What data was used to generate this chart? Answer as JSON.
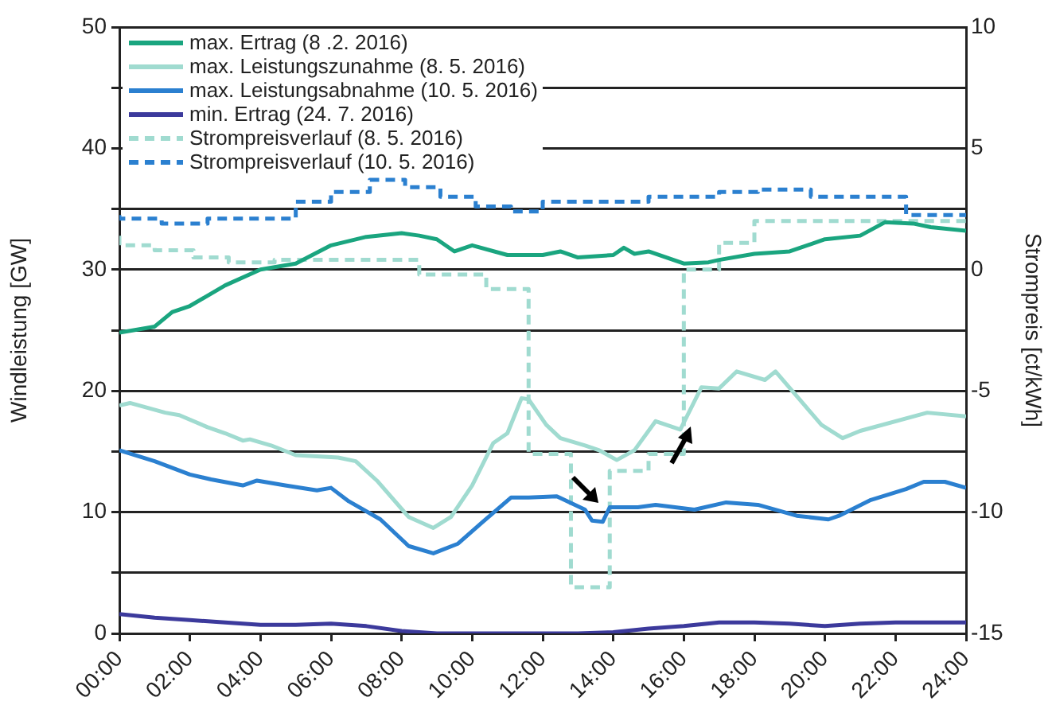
{
  "chart_data": {
    "type": "line",
    "ylabel": "Windleistung [GW]",
    "y2label": "Strompreis [ct/kWh]",
    "xlim": [
      0,
      24
    ],
    "xticks": [
      {
        "value": 0,
        "label": "00:00"
      },
      {
        "value": 2,
        "label": "02:00"
      },
      {
        "value": 4,
        "label": "04:00"
      },
      {
        "value": 6,
        "label": "06:00"
      },
      {
        "value": 8,
        "label": "08:00"
      },
      {
        "value": 10,
        "label": "10:00"
      },
      {
        "value": 12,
        "label": "12:00"
      },
      {
        "value": 14,
        "label": "14:00"
      },
      {
        "value": 16,
        "label": "16:00"
      },
      {
        "value": 18,
        "label": "18:00"
      },
      {
        "value": 20,
        "label": "20:00"
      },
      {
        "value": 22,
        "label": "22:00"
      },
      {
        "value": 24,
        "label": "24:00"
      }
    ],
    "ylim": [
      0,
      50
    ],
    "yticks": [
      0,
      {
        "value": 5,
        "label": null
      },
      10,
      {
        "value": 15,
        "label": null
      },
      20,
      {
        "value": 25,
        "label": null
      },
      30,
      {
        "value": 35,
        "label": null
      },
      40,
      {
        "value": 45,
        "label": null
      },
      50
    ],
    "y2lim": [
      -15,
      10
    ],
    "y2ticks": [
      -15,
      -10,
      -5,
      0,
      5,
      10
    ],
    "grid": "y",
    "legend": "top left",
    "marker": "none",
    "series": [
      {
        "name": "max. Ertrag (8 .2. 2016)",
        "color": "#1aa57f",
        "x": [
          0,
          1,
          1.5,
          2,
          3,
          4,
          5,
          6,
          7,
          8,
          8.5,
          9,
          9.5,
          10,
          11,
          12,
          12.5,
          13,
          14,
          14.3,
          14.6,
          15,
          16,
          16.7,
          17,
          18,
          19,
          20,
          21,
          21.7,
          22.5,
          23,
          24
        ],
        "values": [
          24.8,
          25.3,
          26.5,
          27,
          28.7,
          30,
          30.5,
          32,
          32.7,
          33,
          32.8,
          32.5,
          31.5,
          32,
          31.2,
          31.2,
          31.5,
          31,
          31.2,
          31.8,
          31.3,
          31.5,
          30.5,
          30.6,
          30.8,
          31.3,
          31.5,
          32.5,
          32.8,
          33.9,
          33.8,
          33.5,
          33.2
        ]
      },
      {
        "name": "max. Leistungszunahme (8. 5. 2016)",
        "color": "#a0dbd0",
        "x": [
          0,
          0.3,
          1.3,
          1.7,
          2.5,
          3,
          3.5,
          3.7,
          4.3,
          5,
          6.2,
          6.7,
          7.3,
          8.2,
          8.9,
          9.4,
          10,
          10.6,
          11,
          11.4,
          11.6,
          12.1,
          12.5,
          13.2,
          13.6,
          14.1,
          14.6,
          15.2,
          15.9,
          16.5,
          17,
          17.5,
          18.3,
          18.6,
          19.9,
          20.5,
          21,
          22.9,
          24
        ],
        "values": [
          18.8,
          19,
          18.2,
          18,
          17,
          16.5,
          15.9,
          16,
          15.5,
          14.7,
          14.5,
          14.2,
          12.6,
          9.6,
          8.7,
          9.6,
          12.2,
          15.7,
          16.5,
          19.4,
          19.3,
          17.2,
          16.1,
          15.5,
          15.1,
          14.3,
          15.1,
          17.5,
          16.8,
          20.3,
          20.2,
          21.6,
          20.9,
          21.6,
          17.2,
          16.1,
          16.7,
          18.2,
          17.9
        ]
      },
      {
        "name": "max. Leistungsabnahme (10. 5. 2016)",
        "color": "#2b80d0",
        "x": [
          0,
          1,
          2,
          2.6,
          3.5,
          3.9,
          4.7,
          5.6,
          6,
          6.5,
          7.4,
          8.2,
          8.9,
          9.6,
          10.3,
          11.1,
          11.6,
          12.4,
          13.2,
          13.4,
          13.7,
          13.9,
          14.7,
          15.2,
          16.3,
          17.2,
          18.1,
          19.2,
          20.1,
          20.4,
          21.3,
          22.3,
          22.8,
          23.4,
          24
        ],
        "values": [
          15.1,
          14.2,
          13.1,
          12.7,
          12.2,
          12.6,
          12.2,
          11.8,
          12,
          10.9,
          9.4,
          7.2,
          6.6,
          7.4,
          9.2,
          11.2,
          11.2,
          11.3,
          10.2,
          9.3,
          9.2,
          10.4,
          10.4,
          10.6,
          10.2,
          10.8,
          10.6,
          9.7,
          9.4,
          9.7,
          11,
          11.9,
          12.5,
          12.5,
          12
        ]
      },
      {
        "name": "min. Ertrag (24. 7. 2016)",
        "color": "#3c3a9c",
        "x": [
          0,
          1,
          2,
          3,
          4,
          5,
          6,
          7,
          8,
          9,
          13,
          14,
          15,
          16,
          17,
          18,
          19,
          20,
          21,
          22,
          24
        ],
        "values": [
          1.6,
          1.3,
          1.1,
          0.9,
          0.7,
          0.7,
          0.8,
          0.6,
          0.2,
          0,
          0,
          0.1,
          0.4,
          0.6,
          0.9,
          0.9,
          0.8,
          0.6,
          0.8,
          0.9,
          0.9
        ]
      },
      {
        "name": "Strompreisverlauf (8. 5. 2016)",
        "type": "step",
        "axis": "y2",
        "line_style": "dashed",
        "color": "#a0dbd0",
        "x": [
          0,
          1,
          2.1,
          3.1,
          4.4,
          8.5,
          10.4,
          11.6,
          12.8,
          13.9,
          15,
          16,
          17,
          18,
          19,
          24
        ],
        "values": [
          1.4,
          1,
          0.8,
          0.5,
          0.3,
          0.4,
          -0.2,
          -0.8,
          -7.6,
          -13.1,
          -8.3,
          -7.6,
          0,
          1.1,
          2,
          2
        ]
      },
      {
        "name": "Strompreisverlauf (10. 5. 2016)",
        "type": "step",
        "axis": "y2",
        "line_style": "dashed",
        "color": "#2b80d0",
        "x": [
          0,
          1.2,
          2.5,
          5,
          6,
          7.1,
          8.1,
          9.1,
          10.1,
          11.1,
          12,
          15,
          17,
          18.1,
          19.6,
          22.3,
          23.5,
          24
        ],
        "values": [
          2.25,
          2.1,
          1.9,
          2.1,
          2.8,
          3.2,
          3.7,
          3.4,
          3,
          2.6,
          2.4,
          2.8,
          3,
          3.2,
          3.3,
          3,
          2.25,
          2.25
        ]
      }
    ]
  }
}
